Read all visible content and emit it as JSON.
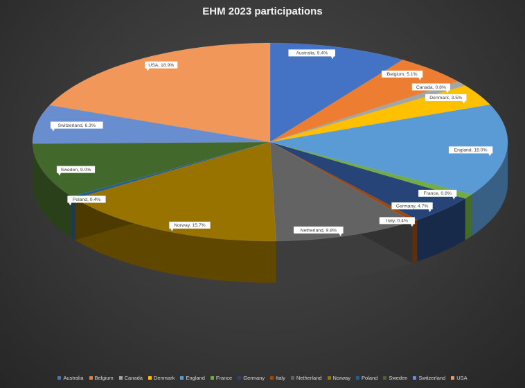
{
  "chart_data": {
    "type": "pie",
    "title": "EHM 2023 participations",
    "categories": [
      "Australia",
      "Belgium",
      "Canada",
      "Denmark",
      "England",
      "France",
      "Germany",
      "Italy",
      "Netherland",
      "Norway",
      "Poland",
      "Sweden",
      "Switzerland",
      "USA"
    ],
    "values": [
      9.4,
      5.1,
      0.8,
      3.5,
      15.0,
      0.8,
      4.7,
      0.4,
      9.8,
      15.7,
      0.4,
      9.0,
      6.3,
      18.9
    ],
    "data_labels": [
      "Australia, 9.4%",
      "Belgium, 5.1%",
      "Canada, 0.8%",
      "Denmark, 3.5%",
      "England, 15.0%",
      "France, 0.8%",
      "Germany, 4.7%",
      "Italy, 0.4%",
      "Netherland, 9.8%",
      "Norway, 15.7%",
      "Poland, 0.4%",
      "Sweden, 9.0%",
      "Switzerland, 6.3%",
      "USA, 18.9%"
    ],
    "colors": [
      "#4472C4",
      "#ED7D31",
      "#A5A5A5",
      "#FFC000",
      "#5B9BD5",
      "#70AD47",
      "#264478",
      "#9E480E",
      "#636363",
      "#997300",
      "#255E91",
      "#43682B",
      "#698ED0",
      "#F1975A"
    ],
    "legend_position": "bottom",
    "style": "3d"
  }
}
